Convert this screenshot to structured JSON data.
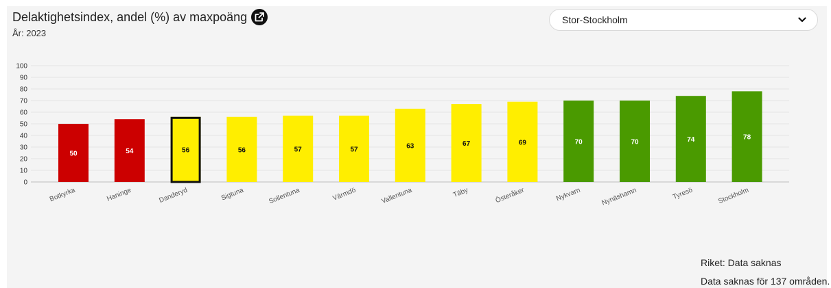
{
  "header": {
    "title": "Delaktighetsindex, andel (%) av maxpoäng",
    "year_label": "År: 2023"
  },
  "region_select": {
    "selected": "Stor-Stockholm"
  },
  "icons": {
    "external_link": "external-link-icon",
    "dropdown": "chevron-down-icon"
  },
  "colors": {
    "red": "#cc0000",
    "yellow": "#ffee00",
    "green": "#4a9a00",
    "highlight_border": "#111111"
  },
  "chart_data": {
    "type": "bar",
    "title": "Delaktighetsindex, andel (%) av maxpoäng",
    "subtitle": "År: 2023",
    "categories": [
      "Botkyrka",
      "Haninge",
      "Danderyd",
      "Sigtuna",
      "Sollentuna",
      "Värmdö",
      "Vallentuna",
      "Täby",
      "Österåker",
      "Nykvarn",
      "Nynäshamn",
      "Tyresö",
      "Stockholm"
    ],
    "values": [
      50,
      54,
      56,
      56,
      57,
      57,
      63,
      67,
      69,
      70,
      70,
      74,
      78
    ],
    "bar_colors": [
      "red",
      "red",
      "yellow",
      "yellow",
      "yellow",
      "yellow",
      "yellow",
      "yellow",
      "yellow",
      "green",
      "green",
      "green",
      "green"
    ],
    "highlighted": "Danderyd",
    "ylim": [
      0,
      100
    ],
    "yticks": [
      0,
      10,
      20,
      30,
      40,
      50,
      60,
      70,
      80,
      90,
      100
    ],
    "grid": true,
    "xlabel": "",
    "ylabel": ""
  },
  "footer": {
    "national": "Riket: Data saknas",
    "missing": "Data saknas för 137 områden."
  }
}
